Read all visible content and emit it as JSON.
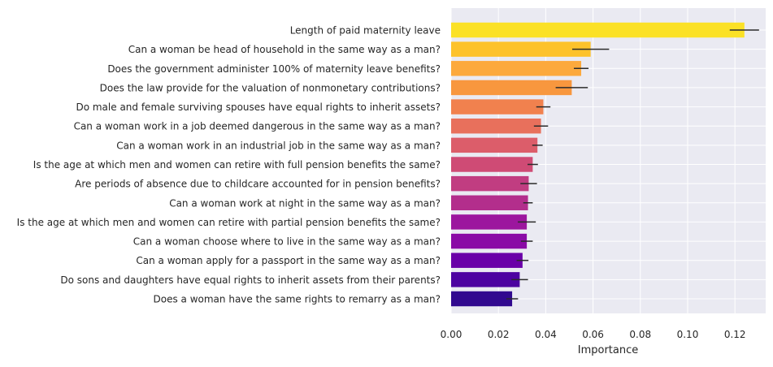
{
  "chart_data": {
    "type": "bar",
    "orientation": "horizontal",
    "title": "",
    "xlabel": "Importance",
    "ylabel": "",
    "xlim": [
      0,
      0.133
    ],
    "xticks": [
      0.0,
      0.02,
      0.04,
      0.06,
      0.08,
      0.1,
      0.12
    ],
    "xtick_labels": [
      "0.00",
      "0.02",
      "0.04",
      "0.06",
      "0.08",
      "0.10",
      "0.12"
    ],
    "grid": true,
    "categories": [
      "Length of paid maternity leave",
      "Can a woman be head of household in the same way as a man?",
      "Does the government administer 100% of maternity leave benefits?",
      "Does the law provide for the valuation of nonmonetary contributions?",
      "Do male and female surviving spouses have equal rights to inherit assets?",
      "Can a woman work in a job deemed dangerous in the same way as a man?",
      "Can a woman work in an industrial job in the same way as a man?",
      "Is the age at which men and women can retire with full pension benefits the same?",
      "Are periods of absence due to childcare accounted for in pension benefits?",
      "Can a woman work at night in the same way as a man?",
      "Is the age at which men and women can retire with partial pension benefits the same?",
      "Can a woman choose where to live in the same way as a man?",
      "Can a woman apply for a passport in the same way as a man?",
      "Do sons and daughters have equal rights to inherit assets from their parents?",
      "Does a woman have the same rights to remarry as a man?"
    ],
    "values": [
      0.124,
      0.059,
      0.055,
      0.051,
      0.039,
      0.038,
      0.0365,
      0.0345,
      0.0328,
      0.0325,
      0.032,
      0.032,
      0.0302,
      0.029,
      0.0258
    ],
    "errors": [
      0.0062,
      0.0078,
      0.0031,
      0.0068,
      0.003,
      0.003,
      0.0022,
      0.0022,
      0.0035,
      0.002,
      0.0038,
      0.0025,
      0.0025,
      0.0035,
      0.0025
    ],
    "colors": [
      "#fbe126",
      "#fdc22b",
      "#fca93d",
      "#f8973e",
      "#f1814e",
      "#e8705c",
      "#dc5d6a",
      "#cf4b75",
      "#c13d81",
      "#b32e8c",
      "#9c169e",
      "#8a0aa6",
      "#6a00a8",
      "#4d03a1",
      "#31098f"
    ],
    "plot_background": "#eaeaf2",
    "grid_color": "#ffffff",
    "error_color": "#2b2b2b"
  }
}
